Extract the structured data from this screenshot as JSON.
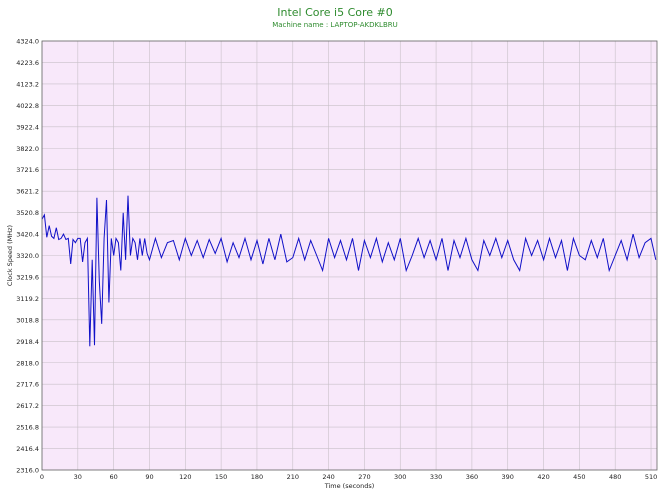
{
  "chart_data": {
    "type": "line",
    "title": "Intel Core i5 Core #0",
    "subtitle": "Machine name : LAPTOP-AKDKLBRU",
    "xlabel": "Time (seconds)",
    "ylabel": "Clock Speed (MHz)",
    "xlim": [
      0,
      515
    ],
    "ylim": [
      2316.0,
      4324.0
    ],
    "x_ticks": [
      "0",
      "30",
      "60",
      "90",
      "120",
      "150",
      "180",
      "210",
      "240",
      "270",
      "300",
      "330",
      "360",
      "390",
      "420",
      "450",
      "480",
      "510"
    ],
    "y_ticks": [
      "4324.0",
      "4223.6",
      "4123.2",
      "4022.8",
      "3922.4",
      "3822.0",
      "3721.6",
      "3621.2",
      "3520.8",
      "3420.4",
      "3320.0",
      "3219.6",
      "3119.2",
      "3018.8",
      "2918.4",
      "2818.0",
      "2717.6",
      "2617.2",
      "2516.8",
      "2416.4",
      "2316.0"
    ],
    "grid": true,
    "background": "#f8e8fa",
    "line_color": "#1010c8",
    "series": [
      {
        "x": [
          0,
          2,
          4,
          6,
          8,
          10,
          12,
          14,
          16,
          18,
          20,
          22,
          24,
          26,
          28,
          30,
          32,
          34,
          36,
          38,
          40,
          42,
          44,
          46,
          48,
          50,
          52,
          54,
          56,
          58,
          60,
          62,
          64,
          66,
          68,
          70,
          72,
          74,
          76,
          78,
          80,
          82,
          84,
          86,
          88,
          90,
          95,
          100,
          105,
          110,
          115,
          120,
          125,
          130,
          135,
          140,
          145,
          150,
          155,
          160,
          165,
          170,
          175,
          180,
          185,
          190,
          195,
          200,
          205,
          210,
          215,
          220,
          225,
          230,
          235,
          240,
          245,
          250,
          255,
          260,
          265,
          270,
          275,
          280,
          285,
          290,
          295,
          300,
          305,
          310,
          315,
          320,
          325,
          330,
          335,
          340,
          345,
          350,
          355,
          360,
          365,
          370,
          375,
          380,
          385,
          390,
          395,
          400,
          405,
          410,
          415,
          420,
          425,
          430,
          435,
          440,
          445,
          450,
          455,
          460,
          465,
          470,
          475,
          480,
          485,
          490,
          495,
          500,
          505,
          510,
          514
        ],
        "y": [
          3490,
          3510,
          3405,
          3460,
          3410,
          3400,
          3450,
          3395,
          3400,
          3420,
          3395,
          3400,
          3280,
          3395,
          3380,
          3400,
          3400,
          3290,
          3380,
          3400,
          2895,
          3300,
          2900,
          3590,
          3200,
          3000,
          3400,
          3580,
          3100,
          3400,
          3320,
          3400,
          3380,
          3250,
          3520,
          3300,
          3600,
          3320,
          3400,
          3380,
          3300,
          3400,
          3320,
          3400,
          3330,
          3300,
          3400,
          3310,
          3380,
          3390,
          3300,
          3400,
          3320,
          3390,
          3310,
          3395,
          3330,
          3400,
          3290,
          3380,
          3310,
          3400,
          3300,
          3390,
          3280,
          3400,
          3300,
          3420,
          3290,
          3310,
          3400,
          3300,
          3390,
          3320,
          3250,
          3400,
          3310,
          3390,
          3300,
          3400,
          3250,
          3390,
          3310,
          3400,
          3290,
          3380,
          3300,
          3400,
          3250,
          3320,
          3400,
          3310,
          3390,
          3300,
          3400,
          3250,
          3390,
          3310,
          3400,
          3300,
          3250,
          3390,
          3320,
          3400,
          3310,
          3390,
          3300,
          3250,
          3400,
          3320,
          3390,
          3300,
          3400,
          3310,
          3390,
          3250,
          3400,
          3320,
          3300,
          3390,
          3310,
          3400,
          3250,
          3320,
          3390,
          3300,
          3420,
          3310,
          3380,
          3400,
          3300
        ]
      }
    ]
  }
}
